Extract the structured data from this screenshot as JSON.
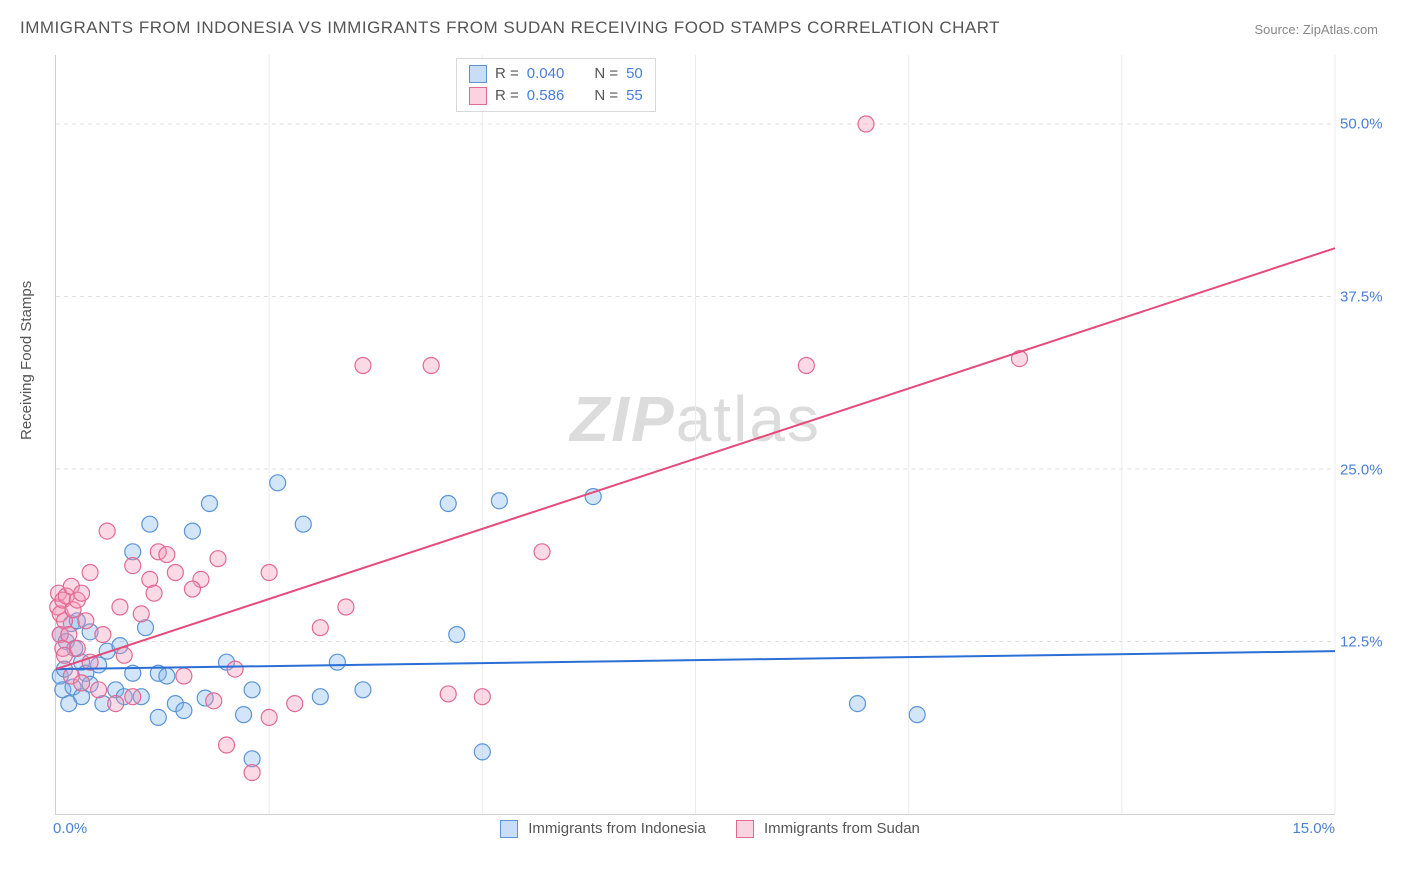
{
  "title": "IMMIGRANTS FROM INDONESIA VS IMMIGRANTS FROM SUDAN RECEIVING FOOD STAMPS CORRELATION CHART",
  "source": "Source: ZipAtlas.com",
  "ylabel": "Receiving Food Stamps",
  "watermark_bold": "ZIP",
  "watermark_rest": "atlas",
  "chart": {
    "type": "scatter",
    "background_color": "#ffffff",
    "grid_color": "#dddddd",
    "axis_color": "#d0d0d0",
    "text_color": "#555555",
    "value_color": "#4a7fd6",
    "title_fontsize": 17,
    "label_fontsize": 15,
    "xlim": [
      0,
      15
    ],
    "ylim": [
      0,
      55
    ],
    "marker_radius": 8,
    "marker_stroke_width": 1.2,
    "line_width": 2,
    "y_ticks": [
      {
        "v": 12.5,
        "label": "12.5%"
      },
      {
        "v": 25.0,
        "label": "25.0%"
      },
      {
        "v": 37.5,
        "label": "37.5%"
      },
      {
        "v": 50.0,
        "label": "50.0%"
      }
    ],
    "x_tick_values": [
      0,
      2.5,
      5,
      7.5,
      10,
      12.5,
      15
    ],
    "x_tick_labels": {
      "min": "0.0%",
      "max": "15.0%"
    },
    "series": [
      {
        "name": "Immigrants from Indonesia",
        "fill": "rgba(130,180,235,0.35)",
        "stroke": "#5b94d6",
        "line_color": "#2a6fd6",
        "R": "0.040",
        "N": "50",
        "trend": {
          "x1": 0,
          "y1": 10.5,
          "x2": 15,
          "y2": 11.8
        },
        "points": [
          [
            0.05,
            10.0
          ],
          [
            0.05,
            13.0
          ],
          [
            0.08,
            9.0
          ],
          [
            0.1,
            10.5
          ],
          [
            0.12,
            12.5
          ],
          [
            0.15,
            8.0
          ],
          [
            0.18,
            13.8
          ],
          [
            0.2,
            9.2
          ],
          [
            0.22,
            12.0
          ],
          [
            0.25,
            14.0
          ],
          [
            0.3,
            8.5
          ],
          [
            0.3,
            11.0
          ],
          [
            0.35,
            10.2
          ],
          [
            0.4,
            9.4
          ],
          [
            0.4,
            13.2
          ],
          [
            0.5,
            10.8
          ],
          [
            0.55,
            8.0
          ],
          [
            0.6,
            11.8
          ],
          [
            0.7,
            9.0
          ],
          [
            0.75,
            12.2
          ],
          [
            0.8,
            8.5
          ],
          [
            0.9,
            19.0
          ],
          [
            0.9,
            10.2
          ],
          [
            1.0,
            8.5
          ],
          [
            1.05,
            13.5
          ],
          [
            1.1,
            21.0
          ],
          [
            1.2,
            7.0
          ],
          [
            1.2,
            10.2
          ],
          [
            1.4,
            8.0
          ],
          [
            1.5,
            7.5
          ],
          [
            1.6,
            20.5
          ],
          [
            1.75,
            8.4
          ],
          [
            1.8,
            22.5
          ],
          [
            2.0,
            11.0
          ],
          [
            2.2,
            7.2
          ],
          [
            2.3,
            4.0
          ],
          [
            2.3,
            9.0
          ],
          [
            2.6,
            24.0
          ],
          [
            2.9,
            21.0
          ],
          [
            3.1,
            8.5
          ],
          [
            3.3,
            11.0
          ],
          [
            3.6,
            9.0
          ],
          [
            4.6,
            22.5
          ],
          [
            4.7,
            13.0
          ],
          [
            5.0,
            4.5
          ],
          [
            5.2,
            22.7
          ],
          [
            6.3,
            23.0
          ],
          [
            9.4,
            8.0
          ],
          [
            10.1,
            7.2
          ],
          [
            1.3,
            10.0
          ]
        ]
      },
      {
        "name": "Immigrants from Sudan",
        "fill": "rgba(245,150,180,0.35)",
        "stroke": "#e06a93",
        "line_color": "#e54b7b",
        "R": "0.586",
        "N": "55",
        "trend": {
          "x1": 0,
          "y1": 10.5,
          "x2": 15,
          "y2": 41.0
        },
        "points": [
          [
            0.02,
            15.0
          ],
          [
            0.03,
            16.0
          ],
          [
            0.05,
            14.5
          ],
          [
            0.05,
            13.0
          ],
          [
            0.08,
            15.5
          ],
          [
            0.08,
            12.0
          ],
          [
            0.1,
            14.0
          ],
          [
            0.1,
            11.5
          ],
          [
            0.12,
            15.8
          ],
          [
            0.15,
            13.0
          ],
          [
            0.18,
            16.5
          ],
          [
            0.18,
            10.0
          ],
          [
            0.2,
            14.8
          ],
          [
            0.25,
            12.0
          ],
          [
            0.25,
            15.5
          ],
          [
            0.3,
            9.5
          ],
          [
            0.3,
            16.0
          ],
          [
            0.35,
            14.0
          ],
          [
            0.4,
            17.5
          ],
          [
            0.4,
            11.0
          ],
          [
            0.5,
            9.0
          ],
          [
            0.55,
            13.0
          ],
          [
            0.6,
            20.5
          ],
          [
            0.7,
            8.0
          ],
          [
            0.75,
            15.0
          ],
          [
            0.8,
            11.5
          ],
          [
            0.9,
            18.0
          ],
          [
            0.9,
            8.5
          ],
          [
            1.0,
            14.5
          ],
          [
            1.1,
            17.0
          ],
          [
            1.15,
            16.0
          ],
          [
            1.2,
            19.0
          ],
          [
            1.3,
            18.8
          ],
          [
            1.4,
            17.5
          ],
          [
            1.5,
            10.0
          ],
          [
            1.7,
            17.0
          ],
          [
            1.85,
            8.2
          ],
          [
            1.9,
            18.5
          ],
          [
            2.0,
            5.0
          ],
          [
            2.1,
            10.5
          ],
          [
            2.3,
            3.0
          ],
          [
            2.5,
            17.5
          ],
          [
            2.5,
            7.0
          ],
          [
            2.8,
            8.0
          ],
          [
            3.1,
            13.5
          ],
          [
            3.4,
            15.0
          ],
          [
            3.6,
            32.5
          ],
          [
            4.4,
            32.5
          ],
          [
            4.6,
            8.7
          ],
          [
            5.0,
            8.5
          ],
          [
            5.7,
            19.0
          ],
          [
            8.8,
            32.5
          ],
          [
            9.5,
            50.0
          ],
          [
            11.3,
            33.0
          ],
          [
            1.6,
            16.3
          ]
        ]
      }
    ]
  },
  "legend_top": {
    "rows": [
      {
        "swatch": "blue",
        "r_label": "R =",
        "r_val": "0.040",
        "n_label": "N =",
        "n_val": "50"
      },
      {
        "swatch": "pink",
        "r_label": "R =",
        "r_val": " 0.586",
        "n_label": "N =",
        "n_val": "55"
      }
    ]
  },
  "legend_bottom": {
    "items": [
      {
        "swatch": "blue",
        "label": "Immigrants from Indonesia"
      },
      {
        "swatch": "pink",
        "label": "Immigrants from Sudan"
      }
    ]
  }
}
